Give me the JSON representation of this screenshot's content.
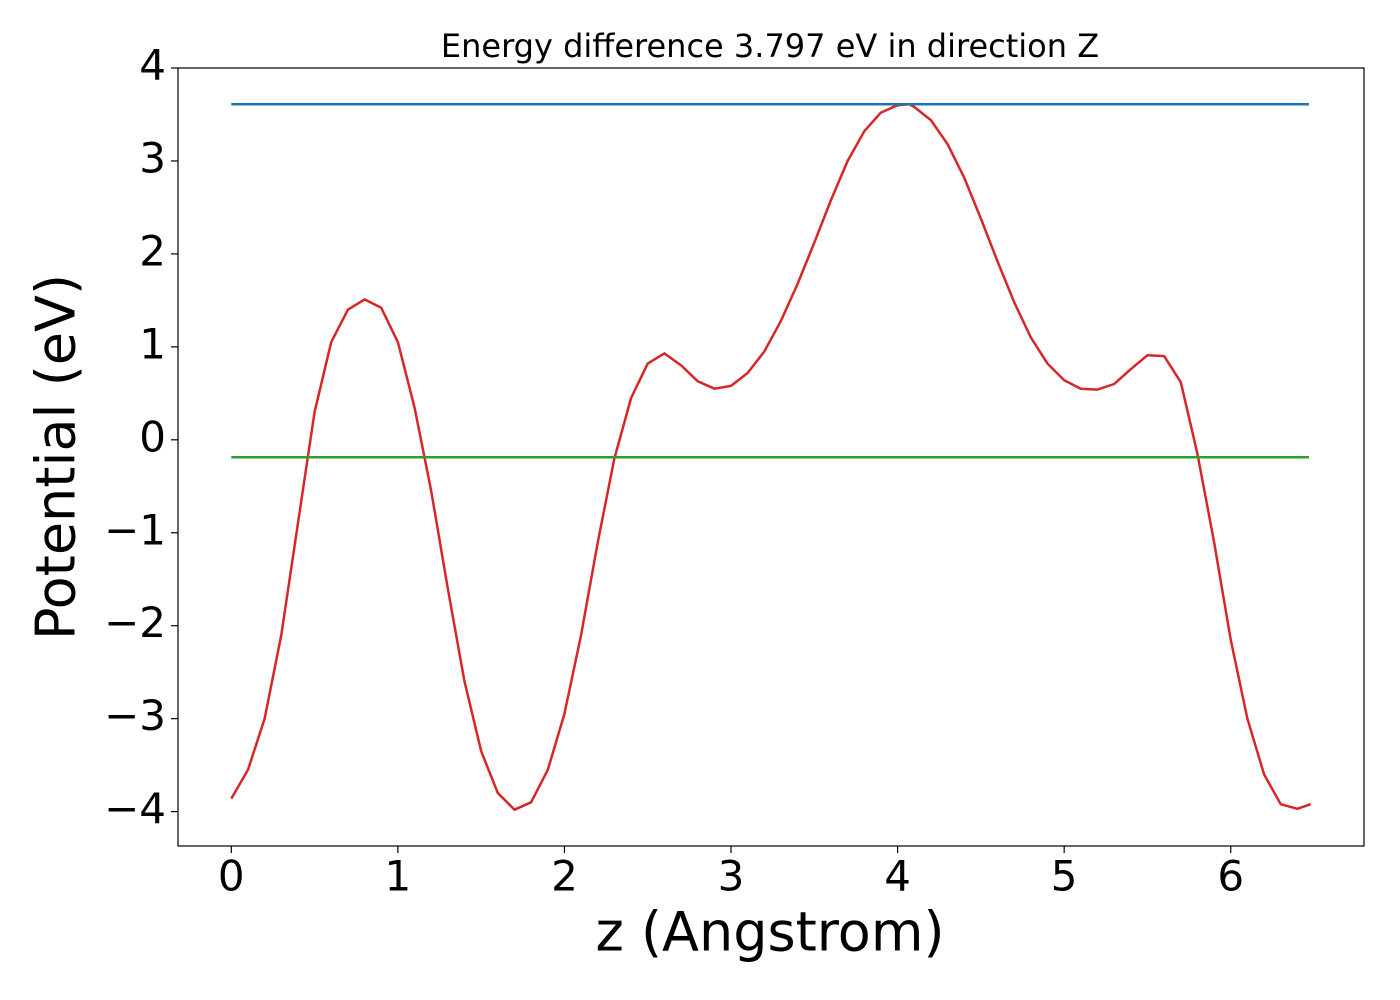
{
  "chart_data": {
    "type": "line",
    "title": "Energy difference 3.797 eV in direction Z",
    "x_label": "z (Angstrom)",
    "y_label": "Potential (eV)",
    "xlim": [
      -0.32,
      6.8
    ],
    "ylim": [
      -4.37,
      4.0
    ],
    "xticks": [
      0,
      1,
      2,
      3,
      4,
      5,
      6
    ],
    "yticks": [
      {
        "value": -4,
        "label": "−4"
      },
      {
        "value": -3,
        "label": "−3"
      },
      {
        "value": -2,
        "label": "−2"
      },
      {
        "value": -1,
        "label": "−1"
      },
      0,
      1,
      2,
      3,
      4
    ],
    "grid": false,
    "series": [
      {
        "color": "#d62728",
        "x": [
          0,
          0.1,
          0.2,
          0.3,
          0.4,
          0.5,
          0.6,
          0.7,
          0.8,
          0.9,
          1.0,
          1.1,
          1.2,
          1.3,
          1.4,
          1.5,
          1.6,
          1.7,
          1.8,
          1.9,
          2.0,
          2.1,
          2.2,
          2.3,
          2.4,
          2.5,
          2.6,
          2.7,
          2.8,
          2.9,
          3.0,
          3.1,
          3.2,
          3.3,
          3.4,
          3.5,
          3.6,
          3.7,
          3.8,
          3.9,
          4.0,
          4.07,
          4.1,
          4.2,
          4.3,
          4.4,
          4.5,
          4.6,
          4.7,
          4.8,
          4.9,
          5.0,
          5.1,
          5.2,
          5.3,
          5.4,
          5.5,
          5.6,
          5.7,
          5.8,
          5.9,
          6.0,
          6.1,
          6.2,
          6.3,
          6.4,
          6.48
        ],
        "values": [
          -3.86,
          -3.55,
          -3.0,
          -2.1,
          -0.9,
          0.3,
          1.05,
          1.4,
          1.51,
          1.42,
          1.05,
          0.35,
          -0.55,
          -1.6,
          -2.6,
          -3.35,
          -3.8,
          -3.98,
          -3.9,
          -3.55,
          -2.95,
          -2.1,
          -1.1,
          -0.2,
          0.45,
          0.82,
          0.93,
          0.8,
          0.63,
          0.55,
          0.58,
          0.72,
          0.95,
          1.28,
          1.68,
          2.12,
          2.58,
          3.0,
          3.32,
          3.52,
          3.6,
          3.61,
          3.58,
          3.44,
          3.18,
          2.82,
          2.38,
          1.92,
          1.48,
          1.1,
          0.82,
          0.64,
          0.55,
          0.54,
          0.6,
          0.76,
          0.91,
          0.9,
          0.62,
          -0.15,
          -1.1,
          -2.15,
          -3.0,
          -3.6,
          -3.92,
          -3.97,
          -3.92
        ]
      },
      {
        "color": "#1f77b4",
        "x": [
          0,
          6.47
        ],
        "values": [
          3.61,
          3.61
        ]
      },
      {
        "color": "#2ca02c",
        "x": [
          0,
          6.47
        ],
        "values": [
          -0.187,
          -0.187
        ]
      }
    ]
  }
}
